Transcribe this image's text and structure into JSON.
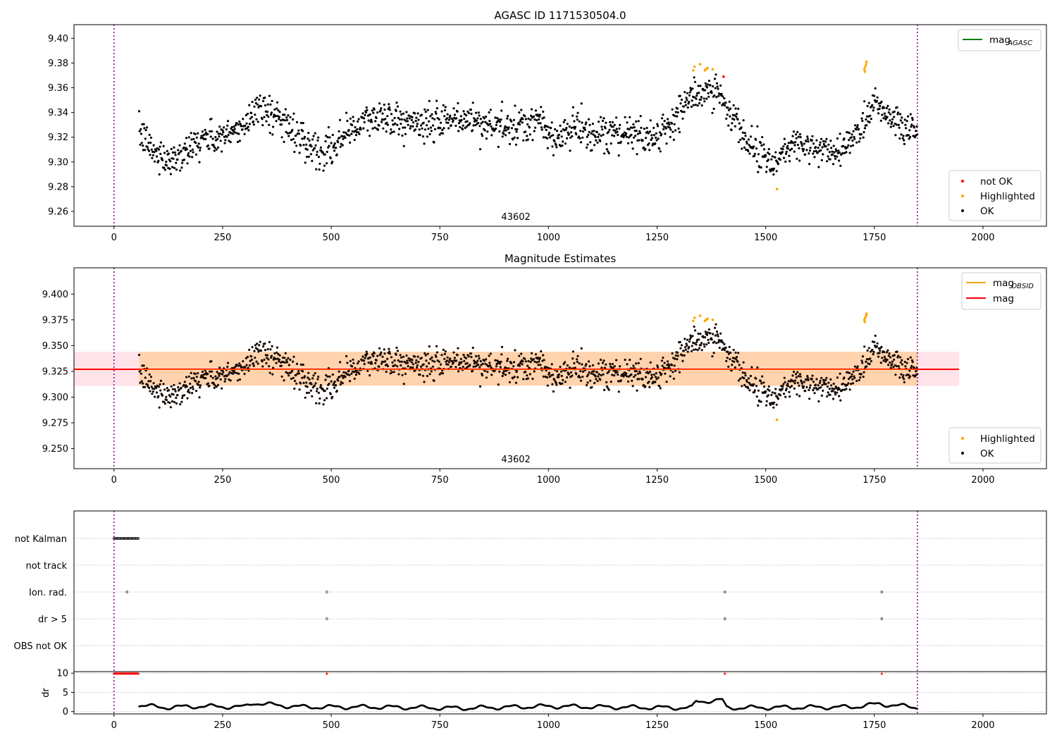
{
  "chart_data": [
    {
      "type": "scatter",
      "title": "AGASC ID 1171530504.0",
      "annotation": "43602",
      "xlim": [
        -92,
        2146
      ],
      "ylim": [
        9.248,
        9.411
      ],
      "x_ticks": [
        0,
        250,
        500,
        750,
        1000,
        1250,
        1500,
        1750,
        2000
      ],
      "y_ticks": [
        9.26,
        9.28,
        9.3,
        9.32,
        9.34,
        9.36,
        9.38,
        9.4
      ],
      "y_tick_decimals": 2,
      "vlines_x": [
        0,
        1849
      ],
      "legend_upper": [
        {
          "label": "mag",
          "sub": "AGASC",
          "color": "#008000",
          "kind": "line"
        }
      ],
      "legend_lower": [
        {
          "label": "not OK",
          "color": "#ff0000",
          "kind": "dot"
        },
        {
          "label": "Highlighted",
          "color": "#ffa500",
          "kind": "dot"
        },
        {
          "label": "OK",
          "color": "#000000",
          "kind": "dot"
        }
      ],
      "series": [
        {
          "name": "OK",
          "color": "#000000",
          "x_range": [
            58,
            1849
          ],
          "count": 1500,
          "mean": 9.327,
          "trend": [
            [
              58,
              9.322
            ],
            [
              100,
              9.305
            ],
            [
              140,
              9.303
            ],
            [
              200,
              9.318
            ],
            [
              260,
              9.32
            ],
            [
              300,
              9.33
            ],
            [
              330,
              9.346
            ],
            [
              380,
              9.335
            ],
            [
              430,
              9.32
            ],
            [
              480,
              9.308
            ],
            [
              520,
              9.318
            ],
            [
              560,
              9.33
            ],
            [
              620,
              9.337
            ],
            [
              680,
              9.332
            ],
            [
              720,
              9.33
            ],
            [
              800,
              9.335
            ],
            [
              860,
              9.33
            ],
            [
              940,
              9.326
            ],
            [
              980,
              9.335
            ],
            [
              1010,
              9.318
            ],
            [
              1060,
              9.328
            ],
            [
              1120,
              9.318
            ],
            [
              1180,
              9.325
            ],
            [
              1240,
              9.319
            ],
            [
              1290,
              9.335
            ],
            [
              1330,
              9.352
            ],
            [
              1390,
              9.358
            ],
            [
              1430,
              9.333
            ],
            [
              1480,
              9.31
            ],
            [
              1520,
              9.297
            ],
            [
              1560,
              9.318
            ],
            [
              1620,
              9.308
            ],
            [
              1680,
              9.31
            ],
            [
              1720,
              9.33
            ],
            [
              1750,
              9.35
            ],
            [
              1790,
              9.335
            ],
            [
              1849,
              9.325
            ]
          ],
          "noise": 0.009
        },
        {
          "name": "Highlighted",
          "color": "#ffa500",
          "points": [
            [
              1333,
              9.374
            ],
            [
              1336,
              9.377
            ],
            [
              1349,
              9.379
            ],
            [
              1360,
              9.374
            ],
            [
              1363,
              9.375
            ],
            [
              1366,
              9.376
            ],
            [
              1378,
              9.375
            ],
            [
              1526,
              9.278
            ],
            [
              1727,
              9.375
            ],
            [
              1728,
              9.373
            ],
            [
              1729,
              9.377
            ],
            [
              1731,
              9.379
            ],
            [
              1732,
              9.381
            ]
          ]
        },
        {
          "name": "not OK",
          "color": "#ff0000",
          "points": [
            [
              1403,
              9.369
            ]
          ]
        }
      ]
    },
    {
      "type": "scatter",
      "title": "Magnitude Estimates",
      "annotation": "43602",
      "xlim": [
        -92,
        2146
      ],
      "ylim": [
        9.2305,
        9.4255
      ],
      "x_ticks": [
        0,
        250,
        500,
        750,
        1000,
        1250,
        1500,
        1750,
        2000
      ],
      "y_ticks": [
        9.25,
        9.275,
        9.3,
        9.325,
        9.35,
        9.375,
        9.4
      ],
      "y_tick_decimals": 3,
      "vlines_x": [
        0,
        1849
      ],
      "mag_line": 9.327,
      "mag_band": [
        9.311,
        9.344
      ],
      "mag_band_x": [
        -92,
        1945
      ],
      "obsid_band_x": [
        58,
        1849
      ],
      "legend_upper": [
        {
          "label": "mag",
          "sub": "OBSID",
          "color": "#ffa500",
          "kind": "line"
        },
        {
          "label": "mag",
          "color": "#ff0000",
          "kind": "line"
        }
      ],
      "legend_lower": [
        {
          "label": "Highlighted",
          "color": "#ffa500",
          "kind": "dot"
        },
        {
          "label": "OK",
          "color": "#000000",
          "kind": "dot"
        }
      ]
    },
    {
      "type": "scatter",
      "xlim": [
        -92,
        2146
      ],
      "x_ticks": [
        0,
        250,
        500,
        750,
        1000,
        1250,
        1500,
        1750,
        2000
      ],
      "flag_rows": [
        "not Kalman",
        "not track",
        "Ion. rad.",
        "dr > 5",
        "OBS not OK"
      ],
      "flags": {
        "not Kalman": {
          "x_range": [
            0,
            57
          ]
        },
        "Ion. rad.": {
          "points": [
            30,
            490,
            1406,
            1767
          ]
        },
        "dr > 5": {
          "points": [
            490,
            1406,
            1767
          ]
        }
      },
      "dr": {
        "ylabel": "dr",
        "ylim": [
          -0.6,
          10.4
        ],
        "y_ticks": [
          0,
          5,
          10
        ],
        "clipped_y": 10,
        "clipped_x": [
          0,
          2,
          4,
          6,
          8,
          10,
          12,
          14,
          16,
          18,
          20,
          22,
          24,
          26,
          28,
          30,
          32,
          34,
          36,
          38,
          40,
          42,
          44,
          46,
          48,
          50,
          52,
          54,
          56,
          490,
          1406,
          1767
        ],
        "x_range": [
          58,
          1849
        ],
        "trend": [
          [
            58,
            1.6
          ],
          [
            120,
            1.1
          ],
          [
            200,
            1.4
          ],
          [
            300,
            1.2
          ],
          [
            320,
            2.3
          ],
          [
            380,
            1.6
          ],
          [
            440,
            1.2
          ],
          [
            600,
            1.2
          ],
          [
            800,
            0.9
          ],
          [
            1000,
            1.4
          ],
          [
            1200,
            1.1
          ],
          [
            1330,
            1.0
          ],
          [
            1340,
            2.6
          ],
          [
            1400,
            3.0
          ],
          [
            1410,
            1.0
          ],
          [
            1700,
            1.2
          ],
          [
            1760,
            2.0
          ],
          [
            1849,
            1.1
          ]
        ]
      }
    }
  ]
}
